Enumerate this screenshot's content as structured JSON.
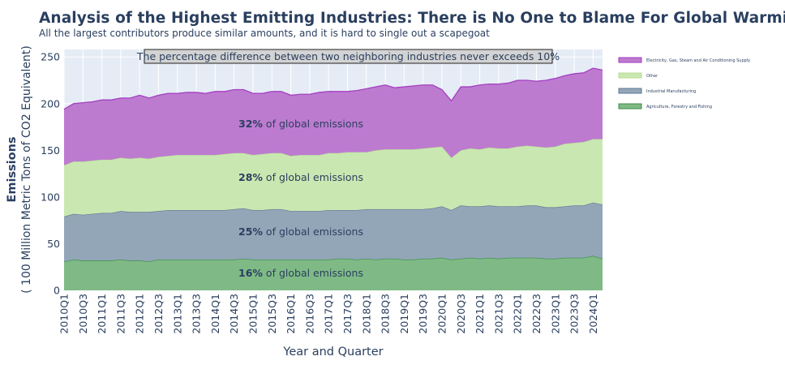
{
  "chart_data": {
    "type": "area",
    "title": "Analysis of the Highest Emitting Industries: There is No One to Blame For Global Warming",
    "subtitle": "All the largest contributors produce similar amounts, and it is hard to single out a scapegoat",
    "xlabel": "Year and Quarter",
    "ylabel_main": "Emissions",
    "ylabel_sub": "( 100 Million Metric Tons of CO2 Equivalent)",
    "ylim": [
      0,
      258
    ],
    "yticks": [
      0,
      50,
      100,
      150,
      200,
      250
    ],
    "stacked": true,
    "grid": true,
    "legend_position": "right",
    "annotation_box": "The percentage difference between two neighboring industries never exceeds 10%",
    "x": [
      "2010Q1",
      "2010Q2",
      "2010Q3",
      "2010Q4",
      "2011Q1",
      "2011Q2",
      "2011Q3",
      "2011Q4",
      "2012Q1",
      "2012Q2",
      "2012Q3",
      "2012Q4",
      "2013Q1",
      "2013Q2",
      "2013Q3",
      "2013Q4",
      "2014Q1",
      "2014Q2",
      "2014Q3",
      "2014Q4",
      "2015Q1",
      "2015Q2",
      "2015Q3",
      "2015Q4",
      "2016Q1",
      "2016Q2",
      "2016Q3",
      "2016Q4",
      "2017Q1",
      "2017Q2",
      "2017Q3",
      "2017Q4",
      "2018Q1",
      "2018Q2",
      "2018Q3",
      "2018Q4",
      "2019Q1",
      "2019Q2",
      "2019Q3",
      "2019Q4",
      "2020Q1",
      "2020Q2",
      "2020Q3",
      "2020Q4",
      "2021Q1",
      "2021Q2",
      "2021Q3",
      "2021Q4",
      "2022Q1",
      "2022Q2",
      "2022Q3",
      "2022Q4",
      "2023Q1",
      "2023Q2",
      "2023Q3",
      "2023Q4",
      "2024Q1",
      "2024Q2"
    ],
    "xtick_labels": [
      "2010Q1",
      "2010Q3",
      "2011Q1",
      "2011Q3",
      "2012Q1",
      "2012Q3",
      "2013Q1",
      "2013Q3",
      "2014Q1",
      "2014Q3",
      "2015Q1",
      "2015Q3",
      "2016Q1",
      "2016Q3",
      "2017Q1",
      "2017Q3",
      "2018Q1",
      "2018Q3",
      "2019Q1",
      "2019Q3",
      "2020Q1",
      "2020Q3",
      "2021Q1",
      "2021Q3",
      "2022Q1",
      "2022Q3",
      "2023Q1",
      "2023Q3",
      "2024Q1"
    ],
    "series": [
      {
        "name": "Agriculture, Forestry and Fishing",
        "color": "#7fba86",
        "line_color": "#3d8b47",
        "share_label_bold": "16%",
        "share_label_rest": " of global emissions",
        "values": [
          31,
          33,
          32,
          32,
          32,
          32,
          33,
          32,
          32,
          31,
          33,
          33,
          33,
          33,
          33,
          33,
          33,
          33,
          33,
          34,
          33,
          33,
          33,
          33,
          33,
          33,
          33,
          33,
          33,
          34,
          34,
          33,
          34,
          33,
          34,
          34,
          33,
          33,
          34,
          34,
          35,
          33,
          34,
          35,
          34,
          35,
          34,
          35,
          35,
          35,
          35,
          34,
          34,
          35,
          35,
          35,
          37,
          34
        ]
      },
      {
        "name": "Industrial Manufacturing",
        "color": "#93a6b8",
        "line_color": "#5f7a93",
        "share_label_bold": "25%",
        "share_label_rest": " of global emissions",
        "values": [
          48,
          49,
          49,
          50,
          51,
          51,
          52,
          52,
          52,
          53,
          52,
          53,
          53,
          53,
          53,
          53,
          53,
          53,
          54,
          54,
          53,
          53,
          54,
          54,
          52,
          52,
          52,
          52,
          53,
          52,
          52,
          53,
          53,
          54,
          53,
          53,
          54,
          54,
          53,
          54,
          55,
          53,
          57,
          55,
          56,
          56,
          56,
          55,
          55,
          56,
          56,
          55,
          55,
          55,
          56,
          56,
          57,
          58
        ]
      },
      {
        "name": "Other",
        "color": "#c9e8b1",
        "line_color": "#b8dd98",
        "share_label_bold": "28%",
        "share_label_rest": " of global emissions",
        "values": [
          55,
          56,
          57,
          57,
          57,
          57,
          57,
          57,
          58,
          57,
          58,
          58,
          59,
          59,
          59,
          59,
          59,
          60,
          60,
          59,
          59,
          60,
          60,
          60,
          59,
          60,
          60,
          60,
          61,
          61,
          62,
          62,
          61,
          63,
          64,
          64,
          64,
          64,
          65,
          65,
          64,
          56,
          59,
          62,
          61,
          62,
          62,
          62,
          64,
          64,
          63,
          64,
          65,
          67,
          67,
          68,
          68,
          70
        ]
      },
      {
        "name": "Electricity, Gas, Steam and Air Conditioning Supply",
        "color": "#bd7bd0",
        "line_color": "#a43fc0",
        "share_label_bold": "32%",
        "share_label_rest": " of global emissions",
        "values": [
          60,
          62,
          63,
          63,
          64,
          64,
          64,
          65,
          67,
          65,
          66,
          67,
          66,
          67,
          67,
          66,
          68,
          67,
          68,
          68,
          66,
          65,
          66,
          66,
          65,
          65,
          65,
          67,
          66,
          66,
          65,
          66,
          68,
          68,
          69,
          66,
          67,
          68,
          68,
          67,
          61,
          61,
          68,
          66,
          69,
          68,
          69,
          70,
          71,
          70,
          70,
          72,
          73,
          73,
          74,
          74,
          76,
          74
        ]
      }
    ]
  }
}
